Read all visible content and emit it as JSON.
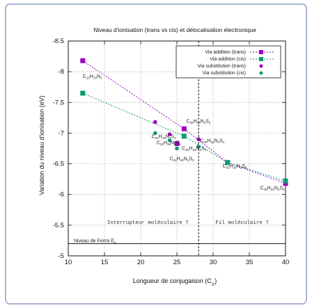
{
  "frame": {
    "border_color": "#a9b3d6",
    "bg": "#ffffff"
  },
  "chart_data": {
    "type": "line",
    "title": "Niveau d'ionisation (trans vs cis) et délocalisation électronique",
    "xlabel": "Longueur de conjugaison (C",
    "xlabel_sub": "π",
    "xlabel_end": ")",
    "ylabel": "Variation du niveau d'ionisation (eV)",
    "xlim": [
      10,
      40
    ],
    "ylim": [
      -5,
      -8.5
    ],
    "xticks": [
      10,
      15,
      20,
      25,
      30,
      35,
      40
    ],
    "yticks": [
      -5,
      -5.5,
      -6,
      -6.5,
      -7,
      -7.5,
      -8,
      -8.5
    ],
    "legend_position": "top-right",
    "series": [
      {
        "name": "Via addition (trans)",
        "color": "#9b00c0",
        "marker": "square",
        "x": [
          12,
          26,
          32,
          40
        ],
        "y": [
          -8.18,
          -7.07,
          -6.52,
          -6.18
        ]
      },
      {
        "name": "Via addition (cis)",
        "color": "#0a9a70",
        "marker": "square",
        "x": [
          12,
          26,
          32,
          40
        ],
        "y": [
          -7.65,
          -6.95,
          -6.52,
          -6.22
        ]
      },
      {
        "name": "Via substitution (trans)",
        "color": "#9b00c0",
        "marker": "circle",
        "x": [
          22,
          24,
          25,
          28
        ],
        "y": [
          -7.18,
          -6.98,
          -6.82,
          -6.9
        ]
      },
      {
        "name": "Via substitution (cis)",
        "color": "#0a9a70",
        "marker": "circle",
        "x": [
          22,
          24,
          25,
          28
        ],
        "y": [
          -7.0,
          -6.88,
          -6.75,
          -6.78
        ]
      }
    ],
    "extra_markers": [
      {
        "x": 25,
        "y": -6.83,
        "color": "#9b00c0",
        "marker": "square"
      }
    ],
    "molecule_labels": [
      {
        "base": "C",
        "sub1": "12",
        "mid1": "H",
        "sub2": "10",
        "mid2": "N",
        "sub3": "2",
        "x": 12,
        "y": -7.9
      },
      {
        "base": "C",
        "sub1": "26",
        "mid1": "H",
        "sub2": "16",
        "mid2": "N",
        "sub3": "2",
        "mid3": "S",
        "sub4": "4",
        "x": 26.3,
        "y": -7.17
      },
      {
        "base": "C",
        "sub1": "24",
        "mid1": "H",
        "sub2": "18",
        "mid2": "N",
        "sub3": "2",
        "mid3": "S",
        "sub4": "4",
        "x": 21.5,
        "y": -6.92
      },
      {
        "base": "C",
        "sub1": "22",
        "mid1": "H",
        "sub2": "18",
        "mid2": "N",
        "sub3": "2",
        "mid3": "S",
        "sub4": "6",
        "x": 22.2,
        "y": -6.82
      },
      {
        "base": "C",
        "sub1": "28",
        "mid1": "H",
        "sub2": "18",
        "mid2": "N",
        "sub3": "2",
        "mid3": "S",
        "sub4": "4",
        "x": 28.2,
        "y": -6.85
      },
      {
        "base": "C",
        "sub1": "26",
        "mid1": "H",
        "sub2": "18",
        "mid2": "N",
        "sub3": "2",
        "mid3": "S",
        "sub4": "4",
        "x": 25.7,
        "y": -6.73
      },
      {
        "base": "C",
        "sub1": "24",
        "mid1": "H",
        "sub2": "20",
        "mid2": "N",
        "sub3": "2",
        "mid3": "S",
        "sub4": "3",
        "x": 24.0,
        "y": -6.56
      },
      {
        "base": "C",
        "sub1": "32",
        "mid1": "H",
        "sub2": "20",
        "mid2": "N",
        "sub3": "2",
        "mid3": "S",
        "sub4": "6",
        "x": 31.3,
        "y": -6.44
      },
      {
        "base": "C",
        "sub1": "40",
        "mid1": "H",
        "sub2": "24",
        "mid2": "N",
        "sub3": "2",
        "mid3": "S",
        "sub4": "8",
        "x": 36.5,
        "y": -6.08
      }
    ],
    "annotations": {
      "left_region": "Interrupteur moléculaire ?",
      "right_region": "Fil moléculaire ?",
      "fermi_label": "Niveau de Fermi E",
      "fermi_sub": "F",
      "fermi_y": -5.2,
      "divider_x": 28
    }
  }
}
